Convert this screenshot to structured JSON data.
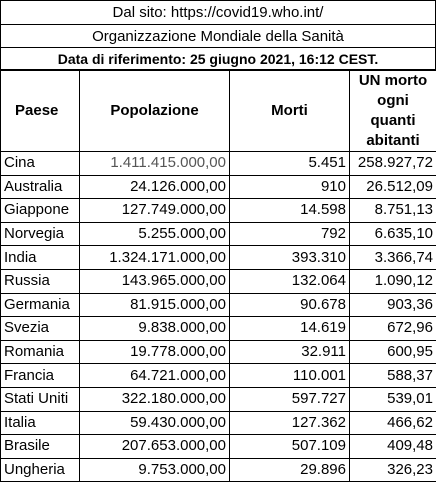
{
  "header": {
    "source": "Dal sito: https://covid19.who.int/",
    "organization": "Organizzazione Mondiale della Sanità",
    "reference_date": "Data di riferimento: 25 giugno 2021, 16:12 CEST."
  },
  "table": {
    "columns": [
      "Paese",
      "Popolazione",
      "Morti",
      "UN morto ogni quanti abitanti"
    ],
    "rows": [
      {
        "paese": "Cina",
        "popolazione": "1.411.415.000,00",
        "morti": "5.451",
        "ratio": "258.927,72"
      },
      {
        "paese": "Australia",
        "popolazione": "24.126.000,00",
        "morti": "910",
        "ratio": "26.512,09"
      },
      {
        "paese": "Giappone",
        "popolazione": "127.749.000,00",
        "morti": "14.598",
        "ratio": "8.751,13"
      },
      {
        "paese": "Norvegia",
        "popolazione": "5.255.000,00",
        "morti": "792",
        "ratio": "6.635,10"
      },
      {
        "paese": "India",
        "popolazione": "1.324.171.000,00",
        "morti": "393.310",
        "ratio": "3.366,74"
      },
      {
        "paese": "Russia",
        "popolazione": "143.965.000,00",
        "morti": "132.064",
        "ratio": "1.090,12"
      },
      {
        "paese": "Germania",
        "popolazione": "81.915.000,00",
        "morti": "90.678",
        "ratio": "903,36"
      },
      {
        "paese": "Svezia",
        "popolazione": "9.838.000,00",
        "morti": "14.619",
        "ratio": "672,96"
      },
      {
        "paese": "Romania",
        "popolazione": "19.778.000,00",
        "morti": "32.911",
        "ratio": "600,95"
      },
      {
        "paese": "Francia",
        "popolazione": "64.721.000,00",
        "morti": "110.001",
        "ratio": "588,37"
      },
      {
        "paese": "Stati Uniti",
        "popolazione": "322.180.000,00",
        "morti": "597.727",
        "ratio": "539,01"
      },
      {
        "paese": "Italia",
        "popolazione": "59.430.000,00",
        "morti": "127.362",
        "ratio": "466,62"
      },
      {
        "paese": "Brasile",
        "popolazione": "207.653.000,00",
        "morti": "507.109",
        "ratio": "409,48"
      },
      {
        "paese": "Ungheria",
        "popolazione": "9.753.000,00",
        "morti": "29.896",
        "ratio": "326,23"
      }
    ]
  }
}
